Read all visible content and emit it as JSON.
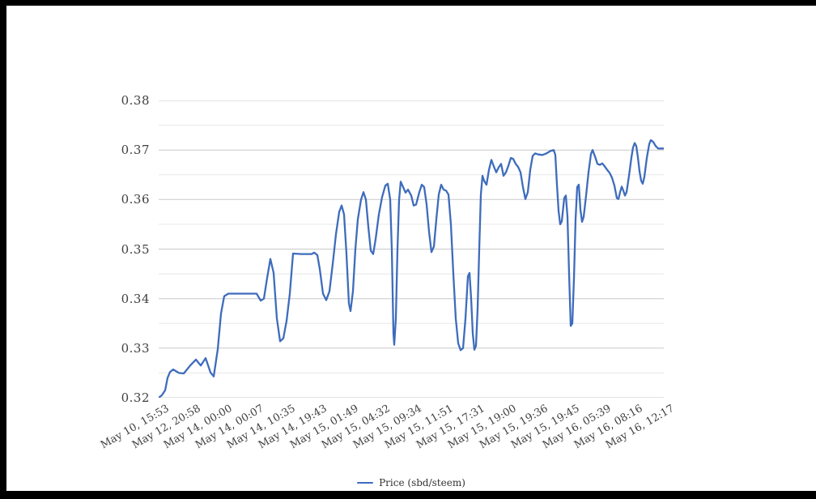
{
  "window": {
    "frame_color": "#000000",
    "canvas_color": "#ffffff"
  },
  "legend": {
    "label": "Price (sbd/steem)"
  },
  "chart_data": {
    "type": "line",
    "title": "",
    "xlabel": "",
    "ylabel": "",
    "ylim": [
      0.32,
      0.38
    ],
    "grid": true,
    "legend_position": "bottom",
    "colors": {
      "line": "#3e6cbc",
      "grid_major": "#c9c9c9",
      "grid_minor": "#e7e7e7",
      "tick_text": "#404040"
    },
    "yticks": [
      {
        "label": "0.38",
        "value": 0.38
      },
      {
        "label": "0.37",
        "value": 0.37
      },
      {
        "label": "0.36",
        "value": 0.36
      },
      {
        "label": "0.35",
        "value": 0.35
      },
      {
        "label": "0.34",
        "value": 0.34
      },
      {
        "label": "0.33",
        "value": 0.33
      },
      {
        "label": "0.32",
        "value": 0.32
      }
    ],
    "gridlines": [
      0.32,
      0.325,
      0.33,
      0.335,
      0.34,
      0.345,
      0.35,
      0.355,
      0.36,
      0.365,
      0.37,
      0.375,
      0.38
    ],
    "major_gridlines": [
      0.32,
      0.33,
      0.34,
      0.35,
      0.36,
      0.37,
      0.38
    ],
    "xticks": [
      "May 10, 15:53",
      "May 12, 20:58",
      "May 14, 00:00",
      "May 14, 00:07",
      "May 14, 10:35",
      "May 14, 19:43",
      "May 15, 01:49",
      "May 15, 04:32",
      "May 15, 09:34",
      "May 15, 11:51",
      "May 15, 17:31",
      "May 15, 19:00",
      "May 15, 19:36",
      "May 15, 19:45",
      "May 16, 05:39",
      "May 16, 08:16",
      "May 16, 12:17"
    ],
    "series": [
      {
        "name": "Price (sbd/steem)",
        "points": [
          [
            0,
            0.32
          ],
          [
            0.64,
            0.3205
          ],
          [
            1.28,
            0.3215
          ],
          [
            1.76,
            0.324
          ],
          [
            2.24,
            0.3252
          ],
          [
            2.88,
            0.3257
          ],
          [
            4.01,
            0.325
          ],
          [
            4.97,
            0.3249
          ],
          [
            6.25,
            0.3265
          ],
          [
            7.37,
            0.3277
          ],
          [
            8.33,
            0.3265
          ],
          [
            9.29,
            0.328
          ],
          [
            10.26,
            0.3251
          ],
          [
            10.9,
            0.3243
          ],
          [
            11.7,
            0.3298
          ],
          [
            12.34,
            0.337
          ],
          [
            12.98,
            0.3405
          ],
          [
            13.78,
            0.341
          ],
          [
            16.67,
            0.341
          ],
          [
            19.39,
            0.341
          ],
          [
            20.19,
            0.3396
          ],
          [
            20.83,
            0.34
          ],
          [
            21.47,
            0.3442
          ],
          [
            22.12,
            0.348
          ],
          [
            22.76,
            0.3452
          ],
          [
            23.4,
            0.336
          ],
          [
            24.04,
            0.3314
          ],
          [
            24.68,
            0.332
          ],
          [
            25.32,
            0.3355
          ],
          [
            25.96,
            0.341
          ],
          [
            26.6,
            0.3491
          ],
          [
            28.21,
            0.349
          ],
          [
            30.29,
            0.349
          ],
          [
            30.77,
            0.3493
          ],
          [
            31.41,
            0.3488
          ],
          [
            31.89,
            0.346
          ],
          [
            32.53,
            0.341
          ],
          [
            33.17,
            0.3397
          ],
          [
            33.81,
            0.3415
          ],
          [
            34.46,
            0.347
          ],
          [
            35.1,
            0.353
          ],
          [
            35.74,
            0.3575
          ],
          [
            36.22,
            0.3588
          ],
          [
            36.7,
            0.357
          ],
          [
            37.18,
            0.349
          ],
          [
            37.66,
            0.339
          ],
          [
            37.98,
            0.3375
          ],
          [
            38.46,
            0.3415
          ],
          [
            38.94,
            0.35
          ],
          [
            39.42,
            0.356
          ],
          [
            40.06,
            0.36
          ],
          [
            40.54,
            0.3615
          ],
          [
            41.03,
            0.36
          ],
          [
            41.51,
            0.3545
          ],
          [
            41.99,
            0.3497
          ],
          [
            42.47,
            0.349
          ],
          [
            42.95,
            0.352
          ],
          [
            43.59,
            0.357
          ],
          [
            44.23,
            0.3605
          ],
          [
            44.87,
            0.3628
          ],
          [
            45.35,
            0.3632
          ],
          [
            45.83,
            0.36
          ],
          [
            46.15,
            0.35
          ],
          [
            46.47,
            0.333
          ],
          [
            46.63,
            0.3307
          ],
          [
            46.95,
            0.336
          ],
          [
            47.28,
            0.35
          ],
          [
            47.6,
            0.36
          ],
          [
            47.92,
            0.3636
          ],
          [
            48.4,
            0.3625
          ],
          [
            48.88,
            0.3614
          ],
          [
            49.36,
            0.362
          ],
          [
            50,
            0.3608
          ],
          [
            50.48,
            0.3588
          ],
          [
            50.96,
            0.359
          ],
          [
            51.6,
            0.3615
          ],
          [
            52.08,
            0.363
          ],
          [
            52.56,
            0.3625
          ],
          [
            53.04,
            0.359
          ],
          [
            53.53,
            0.3535
          ],
          [
            54.01,
            0.3494
          ],
          [
            54.49,
            0.3505
          ],
          [
            54.97,
            0.356
          ],
          [
            55.45,
            0.361
          ],
          [
            55.93,
            0.363
          ],
          [
            56.41,
            0.362
          ],
          [
            56.89,
            0.3618
          ],
          [
            57.37,
            0.361
          ],
          [
            57.85,
            0.355
          ],
          [
            58.33,
            0.345
          ],
          [
            58.81,
            0.336
          ],
          [
            59.29,
            0.331
          ],
          [
            59.78,
            0.3296
          ],
          [
            60.26,
            0.33
          ],
          [
            60.74,
            0.336
          ],
          [
            61.22,
            0.3445
          ],
          [
            61.54,
            0.3452
          ],
          [
            61.86,
            0.34
          ],
          [
            62.18,
            0.333
          ],
          [
            62.5,
            0.3297
          ],
          [
            62.82,
            0.3305
          ],
          [
            63.14,
            0.338
          ],
          [
            63.46,
            0.35
          ],
          [
            63.78,
            0.361
          ],
          [
            64.1,
            0.3648
          ],
          [
            64.42,
            0.3638
          ],
          [
            64.9,
            0.363
          ],
          [
            65.38,
            0.366
          ],
          [
            65.87,
            0.368
          ],
          [
            66.35,
            0.3667
          ],
          [
            66.83,
            0.3655
          ],
          [
            67.31,
            0.3665
          ],
          [
            67.79,
            0.3672
          ],
          [
            68.27,
            0.3648
          ],
          [
            68.75,
            0.3655
          ],
          [
            69.23,
            0.3668
          ],
          [
            69.71,
            0.3684
          ],
          [
            70.19,
            0.3682
          ],
          [
            70.67,
            0.3672
          ],
          [
            71.15,
            0.3666
          ],
          [
            71.63,
            0.3655
          ],
          [
            72.12,
            0.3625
          ],
          [
            72.6,
            0.3601
          ],
          [
            73.08,
            0.3615
          ],
          [
            73.56,
            0.366
          ],
          [
            74.04,
            0.3688
          ],
          [
            74.52,
            0.3693
          ],
          [
            75.16,
            0.3691
          ],
          [
            75.96,
            0.369
          ],
          [
            76.76,
            0.3693
          ],
          [
            77.56,
            0.3698
          ],
          [
            78.21,
            0.37
          ],
          [
            78.53,
            0.369
          ],
          [
            78.85,
            0.363
          ],
          [
            79.17,
            0.3577
          ],
          [
            79.49,
            0.355
          ],
          [
            79.81,
            0.3556
          ],
          [
            80.29,
            0.3603
          ],
          [
            80.61,
            0.3608
          ],
          [
            80.93,
            0.3565
          ],
          [
            81.25,
            0.345
          ],
          [
            81.57,
            0.3345
          ],
          [
            81.89,
            0.335
          ],
          [
            82.21,
            0.344
          ],
          [
            82.53,
            0.356
          ],
          [
            82.85,
            0.3625
          ],
          [
            83.17,
            0.363
          ],
          [
            83.49,
            0.358
          ],
          [
            83.81,
            0.3555
          ],
          [
            84.13,
            0.3565
          ],
          [
            84.62,
            0.3608
          ],
          [
            85.1,
            0.3655
          ],
          [
            85.58,
            0.3692
          ],
          [
            85.9,
            0.37
          ],
          [
            86.38,
            0.3687
          ],
          [
            86.86,
            0.3672
          ],
          [
            87.34,
            0.367
          ],
          [
            87.82,
            0.3673
          ],
          [
            88.3,
            0.3667
          ],
          [
            88.78,
            0.366
          ],
          [
            89.26,
            0.3654
          ],
          [
            89.74,
            0.3644
          ],
          [
            90.22,
            0.3628
          ],
          [
            90.71,
            0.3603
          ],
          [
            91.03,
            0.3601
          ],
          [
            91.35,
            0.3615
          ],
          [
            91.67,
            0.3626
          ],
          [
            91.99,
            0.3618
          ],
          [
            92.31,
            0.3608
          ],
          [
            92.63,
            0.3615
          ],
          [
            93.11,
            0.3648
          ],
          [
            93.59,
            0.3685
          ],
          [
            93.91,
            0.3705
          ],
          [
            94.23,
            0.3714
          ],
          [
            94.55,
            0.3708
          ],
          [
            94.87,
            0.3685
          ],
          [
            95.19,
            0.3657
          ],
          [
            95.51,
            0.3638
          ],
          [
            95.83,
            0.3632
          ],
          [
            96.15,
            0.3646
          ],
          [
            96.63,
            0.3684
          ],
          [
            97.12,
            0.3712
          ],
          [
            97.44,
            0.372
          ],
          [
            97.92,
            0.3716
          ],
          [
            98.4,
            0.3708
          ],
          [
            98.88,
            0.3703
          ],
          [
            100,
            0.3703
          ]
        ]
      }
    ]
  }
}
